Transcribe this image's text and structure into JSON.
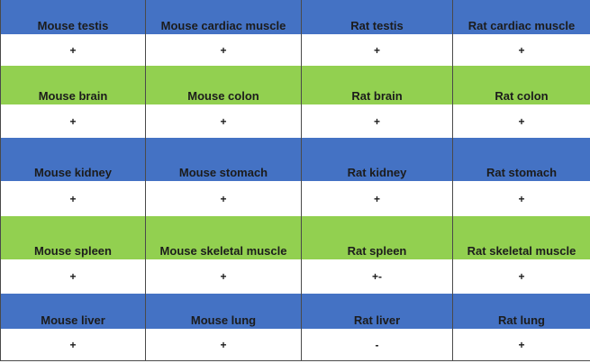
{
  "colors": {
    "blue_header": "#4472c4",
    "green_header": "#92d050",
    "value_row": "#ffffff",
    "grid_line": "#4a4a4a"
  },
  "rows": [
    {
      "style": "blue",
      "headers": [
        "Mouse testis",
        "Mouse cardiac muscle",
        "Rat testis",
        "Rat cardiac muscle"
      ],
      "values": [
        "+",
        "+",
        "+",
        "+"
      ]
    },
    {
      "style": "green",
      "headers": [
        "Mouse brain",
        "Mouse colon",
        "Rat brain",
        "Rat colon"
      ],
      "values": [
        "+",
        "+",
        "+",
        "+"
      ]
    },
    {
      "style": "blue",
      "headers": [
        "Mouse kidney",
        "Mouse stomach",
        "Rat kidney",
        "Rat stomach"
      ],
      "values": [
        "+",
        "+",
        "+",
        "+"
      ]
    },
    {
      "style": "green",
      "headers": [
        "Mouse spleen",
        "Mouse skeletal muscle",
        "Rat spleen",
        "Rat skeletal muscle"
      ],
      "values": [
        "+",
        "+",
        "+-",
        "+"
      ]
    },
    {
      "style": "blue",
      "headers": [
        "Mouse liver",
        "Mouse lung",
        "Rat liver",
        "Rat lung"
      ],
      "values": [
        "+",
        "+",
        "-",
        "+"
      ]
    }
  ]
}
